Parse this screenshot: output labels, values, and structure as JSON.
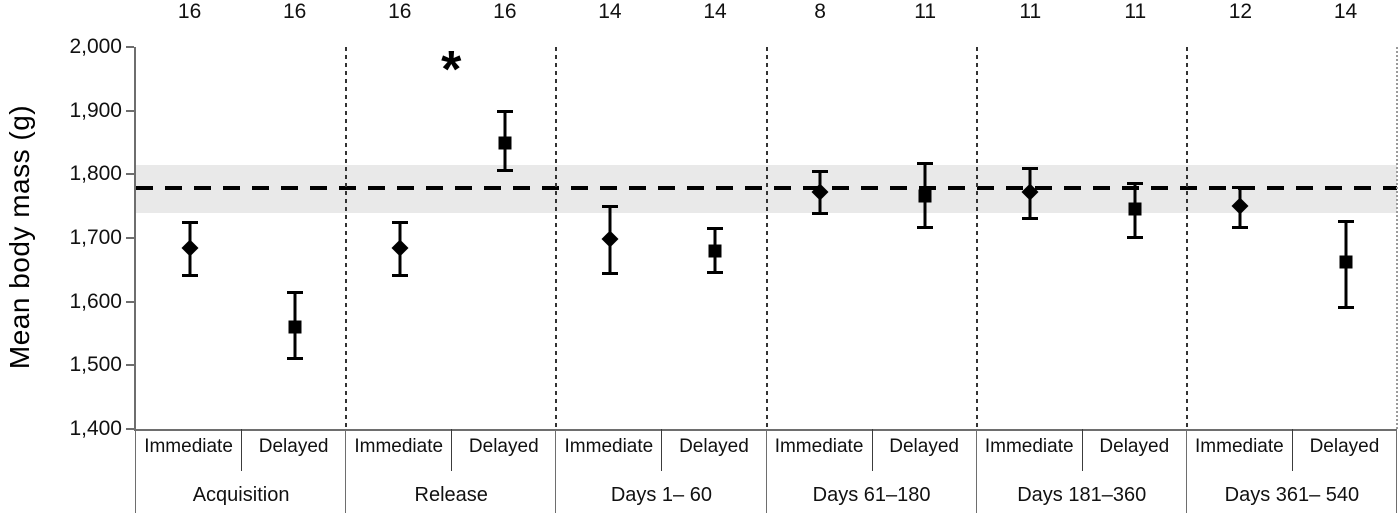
{
  "figure": {
    "y_axis_title": "Mean body mass (g)",
    "significance_marker": "*"
  },
  "chart_data": {
    "type": "scatter",
    "title": "",
    "xlabel": "",
    "ylabel": "Mean body mass (g)",
    "ylim": [
      1400,
      2000
    ],
    "y_ticks": [
      2000,
      1900,
      1800,
      1700,
      1600,
      1500,
      1400
    ],
    "y_tick_labels": [
      "2,000",
      "1,900",
      "1,800",
      "1,700",
      "1,600",
      "1,500",
      "1,400"
    ],
    "grid": false,
    "legend": "none",
    "marker_legend": {
      "Immediate": "diamond",
      "Delayed": "square"
    },
    "reference_line": {
      "value": 1778,
      "style": "dashed-black-horizontal"
    },
    "reference_band": {
      "from": 1740,
      "to": 1815,
      "color": "#e9e9e9"
    },
    "phases": [
      {
        "label": "Acquisition",
        "significant": false,
        "points": [
          {
            "group": "Immediate",
            "n": 16,
            "mean": 1685,
            "lo": 1640,
            "hi": 1725
          },
          {
            "group": "Delayed",
            "n": 16,
            "mean": 1560,
            "lo": 1510,
            "hi": 1615
          }
        ]
      },
      {
        "label": "Release",
        "significant": true,
        "points": [
          {
            "group": "Immediate",
            "n": 16,
            "mean": 1685,
            "lo": 1640,
            "hi": 1725
          },
          {
            "group": "Delayed",
            "n": 16,
            "mean": 1850,
            "lo": 1805,
            "hi": 1900
          }
        ]
      },
      {
        "label": "Days 1– 60",
        "significant": false,
        "points": [
          {
            "group": "Immediate",
            "n": 14,
            "mean": 1698,
            "lo": 1643,
            "hi": 1750
          },
          {
            "group": "Delayed",
            "n": 14,
            "mean": 1680,
            "lo": 1645,
            "hi": 1715
          }
        ]
      },
      {
        "label": "Days 61–180",
        "significant": false,
        "points": [
          {
            "group": "Immediate",
            "n": 8,
            "mean": 1772,
            "lo": 1737,
            "hi": 1806
          },
          {
            "group": "Delayed",
            "n": 11,
            "mean": 1766,
            "lo": 1716,
            "hi": 1818
          }
        ]
      },
      {
        "label": "Days 181–360",
        "significant": false,
        "points": [
          {
            "group": "Immediate",
            "n": 11,
            "mean": 1772,
            "lo": 1730,
            "hi": 1810
          },
          {
            "group": "Delayed",
            "n": 11,
            "mean": 1746,
            "lo": 1700,
            "hi": 1787
          }
        ]
      },
      {
        "label": "Days 361– 540",
        "significant": false,
        "points": [
          {
            "group": "Immediate",
            "n": 12,
            "mean": 1750,
            "lo": 1716,
            "hi": 1780
          },
          {
            "group": "Delayed",
            "n": 14,
            "mean": 1663,
            "lo": 1590,
            "hi": 1726
          }
        ]
      }
    ]
  }
}
